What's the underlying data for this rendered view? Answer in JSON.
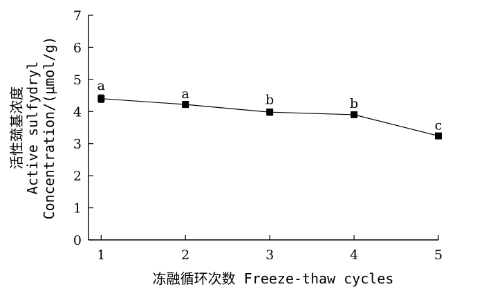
{
  "chart_data": {
    "type": "line",
    "title": "",
    "xlabel": "冻融循环次数 Freeze-thaw cycles",
    "ylabel_lines": [
      "活性巯基浓度",
      "Active sulfydryl",
      "Concentration/(μmol/g)"
    ],
    "xlim": [
      0.85,
      5
    ],
    "ylim": [
      0,
      7
    ],
    "xticks": [
      1,
      2,
      3,
      4,
      5
    ],
    "yticks": [
      0,
      1,
      2,
      3,
      4,
      5,
      6,
      7
    ],
    "grid": false,
    "series": [
      {
        "x": [
          1,
          2,
          3,
          4,
          5
        ],
        "y": [
          4.4,
          4.22,
          3.98,
          3.9,
          3.24
        ],
        "error": [
          0.12,
          0.05,
          0.1,
          0.06,
          0.05
        ],
        "labels": [
          "a",
          "a",
          "b",
          "b",
          "c"
        ]
      }
    ],
    "colors": {
      "line": "#000000",
      "marker": "#000000"
    }
  }
}
